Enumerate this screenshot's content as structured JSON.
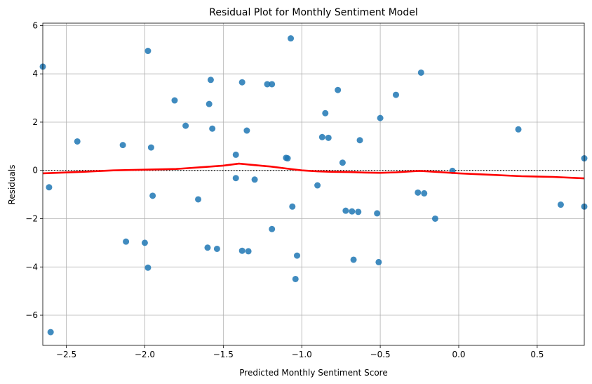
{
  "chart_data": {
    "type": "scatter",
    "title": "Residual Plot for Monthly Sentiment Model",
    "xlabel": "Predicted Monthly Sentiment Score",
    "ylabel": "Residuals",
    "xlim": [
      -2.65,
      0.8
    ],
    "ylim": [
      -7.25,
      6.1
    ],
    "xticks": [
      -2.5,
      -2.0,
      -1.5,
      -1.0,
      -0.5,
      0.0,
      0.5
    ],
    "xtick_labels": [
      "−2.5",
      "−2.0",
      "−1.5",
      "−1.0",
      "−0.5",
      "0.0",
      "0.5"
    ],
    "yticks": [
      -6,
      -4,
      -2,
      0,
      2,
      4,
      6
    ],
    "ytick_labels": [
      "−6",
      "−4",
      "−2",
      "0",
      "2",
      "4",
      "6"
    ],
    "grid": true,
    "reference_line_y": 0,
    "colors": {
      "points": "#1f77b4",
      "lowess": "#ff0000",
      "grid": "#b0b0b0",
      "reference": "#000000"
    },
    "series": [
      {
        "kind": "points",
        "points": [
          [
            -2.65,
            4.3
          ],
          [
            -2.61,
            -0.7
          ],
          [
            -2.6,
            -6.7
          ],
          [
            -2.43,
            1.2
          ],
          [
            -2.14,
            1.05
          ],
          [
            -2.12,
            -2.95
          ],
          [
            -2.0,
            -3.0
          ],
          [
            -1.98,
            4.95
          ],
          [
            -1.98,
            -4.03
          ],
          [
            -1.96,
            0.95
          ],
          [
            -1.95,
            -1.05
          ],
          [
            -1.81,
            2.9
          ],
          [
            -1.74,
            1.85
          ],
          [
            -1.66,
            -1.2
          ],
          [
            -1.6,
            -3.2
          ],
          [
            -1.59,
            2.75
          ],
          [
            -1.58,
            3.75
          ],
          [
            -1.57,
            1.73
          ],
          [
            -1.54,
            -3.25
          ],
          [
            -1.42,
            0.65
          ],
          [
            -1.42,
            -0.32
          ],
          [
            -1.38,
            3.65
          ],
          [
            -1.38,
            -3.33
          ],
          [
            -1.35,
            1.65
          ],
          [
            -1.34,
            -3.35
          ],
          [
            -1.3,
            -0.38
          ],
          [
            -1.22,
            3.57
          ],
          [
            -1.19,
            3.57
          ],
          [
            -1.19,
            -2.43
          ],
          [
            -1.1,
            0.52
          ],
          [
            -1.09,
            0.5
          ],
          [
            -1.07,
            5.47
          ],
          [
            -1.06,
            -1.5
          ],
          [
            -1.04,
            -4.5
          ],
          [
            -1.03,
            -3.53
          ],
          [
            -0.9,
            -0.62
          ],
          [
            -0.87,
            1.38
          ],
          [
            -0.85,
            2.37
          ],
          [
            -0.83,
            1.35
          ],
          [
            -0.77,
            3.33
          ],
          [
            -0.74,
            0.32
          ],
          [
            -0.72,
            -1.67
          ],
          [
            -0.68,
            -1.7
          ],
          [
            -0.67,
            -3.7
          ],
          [
            -0.64,
            -1.72
          ],
          [
            -0.63,
            1.25
          ],
          [
            -0.52,
            -1.78
          ],
          [
            -0.51,
            -3.8
          ],
          [
            -0.5,
            2.17
          ],
          [
            -0.4,
            3.13
          ],
          [
            -0.26,
            -0.92
          ],
          [
            -0.24,
            4.05
          ],
          [
            -0.22,
            -0.95
          ],
          [
            -0.15,
            -2.0
          ],
          [
            -0.04,
            -0.02
          ],
          [
            0.38,
            1.7
          ],
          [
            0.65,
            -1.42
          ],
          [
            0.8,
            0.5
          ],
          [
            0.8,
            -1.5
          ]
        ]
      },
      {
        "kind": "lowess",
        "points": [
          [
            -2.65,
            -0.12
          ],
          [
            -2.4,
            -0.06
          ],
          [
            -2.2,
            0.0
          ],
          [
            -2.0,
            0.03
          ],
          [
            -1.8,
            0.06
          ],
          [
            -1.6,
            0.15
          ],
          [
            -1.5,
            0.2
          ],
          [
            -1.4,
            0.28
          ],
          [
            -1.3,
            0.22
          ],
          [
            -1.2,
            0.16
          ],
          [
            -1.1,
            0.08
          ],
          [
            -1.0,
            0.0
          ],
          [
            -0.9,
            -0.04
          ],
          [
            -0.8,
            -0.06
          ],
          [
            -0.7,
            -0.07
          ],
          [
            -0.6,
            -0.09
          ],
          [
            -0.5,
            -0.1
          ],
          [
            -0.4,
            -0.08
          ],
          [
            -0.3,
            -0.04
          ],
          [
            -0.25,
            -0.02
          ],
          [
            -0.2,
            -0.04
          ],
          [
            -0.1,
            -0.08
          ],
          [
            0.0,
            -0.12
          ],
          [
            0.2,
            -0.18
          ],
          [
            0.4,
            -0.24
          ],
          [
            0.6,
            -0.27
          ],
          [
            0.8,
            -0.33
          ]
        ]
      }
    ]
  }
}
